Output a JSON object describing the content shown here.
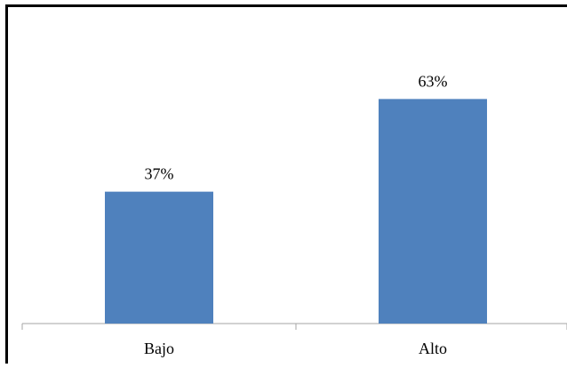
{
  "chart_data": {
    "type": "bar",
    "categories": [
      "Bajo",
      "Alto"
    ],
    "values": [
      37,
      63
    ],
    "data_labels": [
      "37%",
      "63%"
    ],
    "ylim": [
      0,
      70
    ],
    "grid": false,
    "legend": "none",
    "bar_color": "#4F81BD",
    "axis_color": "#A6A6A6"
  }
}
